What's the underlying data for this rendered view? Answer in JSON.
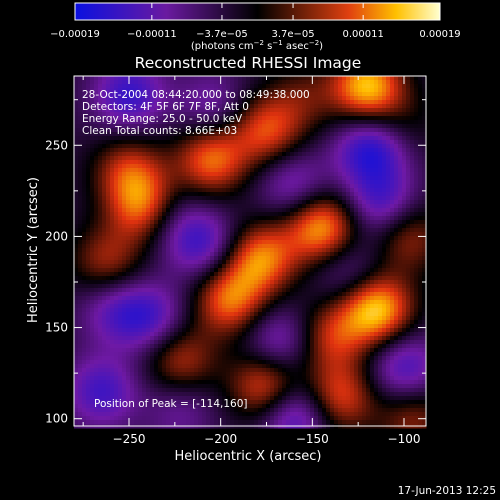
{
  "chart_data": {
    "type": "heatmap",
    "title": "Reconstructed RHESSI Image",
    "xlabel": "Heliocentric X (arcsec)",
    "ylabel": "Heliocentric Y (arcsec)",
    "xlim": [
      -280,
      -88
    ],
    "ylim": [
      96,
      288
    ],
    "x_ticks": [
      {
        "value": -250,
        "label": "−250"
      },
      {
        "value": -200,
        "label": "−200"
      },
      {
        "value": -150,
        "label": "−150"
      },
      {
        "value": -100,
        "label": "−100"
      }
    ],
    "y_ticks": [
      {
        "value": 100,
        "label": "100"
      },
      {
        "value": 150,
        "label": "150"
      },
      {
        "value": 200,
        "label": "200"
      },
      {
        "value": 250,
        "label": "250"
      }
    ],
    "info_lines": [
      "28-Oct-2004 08:44:20.000 to 08:49:38.000",
      "Detectors: 4F 5F 6F 7F 8F, Att 0",
      "Energy Range: 25.0 - 50.0 keV",
      "Clean    Total counts: 8.66E+03"
    ],
    "peak_label": "Position of Peak = [-114,160]",
    "colorbar": {
      "range": [
        -0.00019,
        0.00019
      ],
      "ticks": [
        {
          "value": -0.00019,
          "label": "−0.00019"
        },
        {
          "value": -0.00011,
          "label": "−0.00011"
        },
        {
          "value": -3.7e-05,
          "label": "−3.7e−05"
        },
        {
          "value": 3.7e-05,
          "label": "3.7e−05"
        },
        {
          "value": 0.00011,
          "label": "0.00011"
        },
        {
          "value": 0.00019,
          "label": "0.00019"
        }
      ],
      "unit_parts": [
        "(photons cm",
        "−2",
        " s",
        "−1",
        " asec",
        "−2",
        ")"
      ]
    },
    "colors": {
      "negative_low": "#0a10e0",
      "negative_mid": "#6a1aa0",
      "zero": "#000000",
      "positive_mid": "#e04010",
      "positive_high": "#ffffd0"
    },
    "blobs": [
      {
        "x": -240,
        "y": 215,
        "v": 1.0
      },
      {
        "x": -250,
        "y": 278,
        "v": -0.6
      },
      {
        "x": -205,
        "y": 242,
        "v": 0.75
      },
      {
        "x": -175,
        "y": 258,
        "v": 0.65
      },
      {
        "x": -120,
        "y": 282,
        "v": 0.95
      },
      {
        "x": -118,
        "y": 248,
        "v": -0.7
      },
      {
        "x": -160,
        "y": 228,
        "v": -0.45
      },
      {
        "x": -250,
        "y": 236,
        "v": 0.55
      },
      {
        "x": -232,
        "y": 212,
        "v": -0.55
      },
      {
        "x": -262,
        "y": 186,
        "v": 0.5
      },
      {
        "x": -210,
        "y": 196,
        "v": -0.55
      },
      {
        "x": -178,
        "y": 188,
        "v": 0.78
      },
      {
        "x": -145,
        "y": 205,
        "v": 0.9
      },
      {
        "x": -112,
        "y": 218,
        "v": -0.55
      },
      {
        "x": -98,
        "y": 200,
        "v": 0.5
      },
      {
        "x": -115,
        "y": 160,
        "v": 1.0
      },
      {
        "x": -140,
        "y": 145,
        "v": 0.55
      },
      {
        "x": -195,
        "y": 165,
        "v": 0.75
      },
      {
        "x": -238,
        "y": 155,
        "v": -0.5
      },
      {
        "x": -258,
        "y": 160,
        "v": -0.4
      },
      {
        "x": -222,
        "y": 132,
        "v": 0.55
      },
      {
        "x": -168,
        "y": 142,
        "v": -0.5
      },
      {
        "x": -175,
        "y": 118,
        "v": 0.75
      },
      {
        "x": -135,
        "y": 112,
        "v": 0.65
      },
      {
        "x": -265,
        "y": 115,
        "v": -0.55
      },
      {
        "x": -222,
        "y": 105,
        "v": -0.3
      },
      {
        "x": -160,
        "y": 102,
        "v": -0.65
      },
      {
        "x": -100,
        "y": 128,
        "v": -0.55
      },
      {
        "x": -95,
        "y": 100,
        "v": 0.45
      },
      {
        "x": -130,
        "y": 180,
        "v": -0.35
      },
      {
        "x": -205,
        "y": 272,
        "v": -0.35
      },
      {
        "x": -155,
        "y": 276,
        "v": 0.3
      },
      {
        "x": -100,
        "y": 262,
        "v": 0.2
      }
    ]
  },
  "timestamp": "17-Jun-2013 12:25"
}
